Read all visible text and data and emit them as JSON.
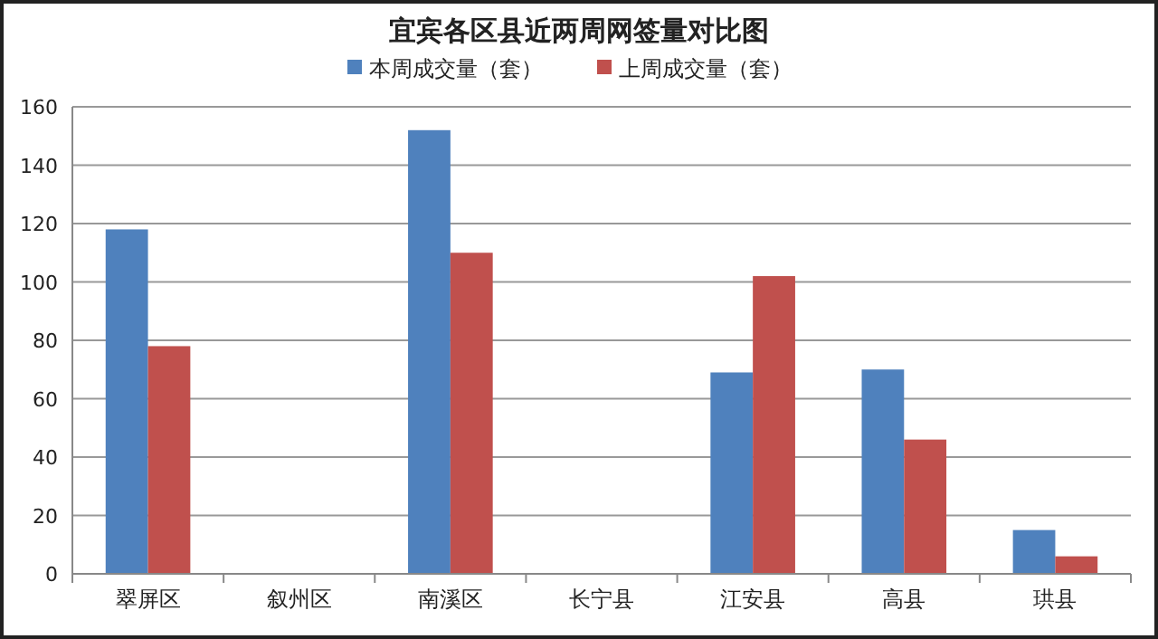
{
  "chart_data": {
    "type": "bar",
    "title": "宜宾各区县近两周网签量对比图",
    "categories": [
      "翠屏区",
      "叙州区",
      "南溪区",
      "长宁县",
      "江安县",
      "高县",
      "珙县"
    ],
    "series": [
      {
        "name": "本周成交量（套）",
        "color": "#4f81bd",
        "values": [
          118,
          null,
          152,
          null,
          69,
          70,
          15
        ]
      },
      {
        "name": "上周成交量（套）",
        "color": "#c0504d",
        "values": [
          78,
          null,
          110,
          null,
          102,
          46,
          6
        ]
      }
    ],
    "ylim": [
      0,
      160
    ],
    "yticks": [
      0,
      20,
      40,
      60,
      80,
      100,
      120,
      140,
      160
    ],
    "grid": "y",
    "legend": "top"
  }
}
